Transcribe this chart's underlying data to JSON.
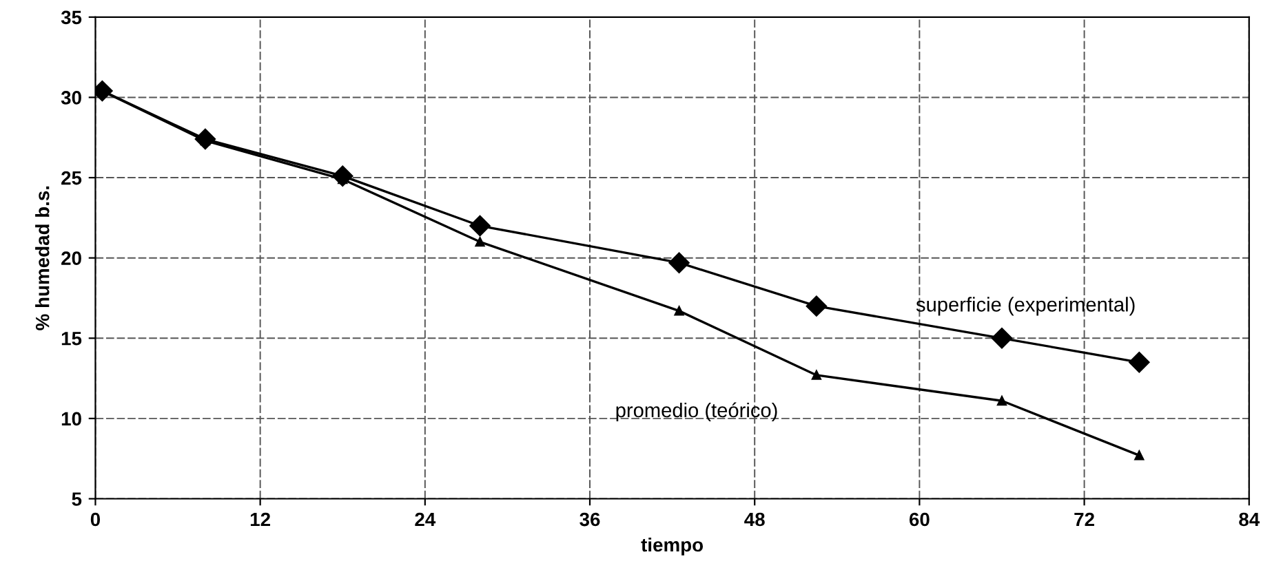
{
  "chart_data": {
    "type": "line",
    "xlabel": "tiempo",
    "ylabel": "% humedad b.s.",
    "xlim": [
      0,
      84
    ],
    "xticks": [
      0,
      12,
      24,
      36,
      48,
      60,
      72,
      84
    ],
    "ylim": [
      5,
      35
    ],
    "yticks": [
      5,
      10,
      15,
      20,
      25,
      30,
      35
    ],
    "grid": true,
    "legend": false,
    "x": [
      0.5,
      8,
      18,
      28,
      42.5,
      52.5,
      66,
      76
    ],
    "series": [
      {
        "name": "superficie (experimental)",
        "color": "#000000",
        "marker": "diamond",
        "values": [
          30.4,
          27.4,
          25.1,
          22.0,
          19.7,
          17.0,
          15.0,
          13.5
        ]
      },
      {
        "name": "promedio (teórico)",
        "color": "#000000",
        "marker": "triangle",
        "values": [
          30.4,
          27.3,
          24.9,
          21.0,
          16.7,
          12.7,
          11.1,
          7.7
        ]
      }
    ]
  }
}
